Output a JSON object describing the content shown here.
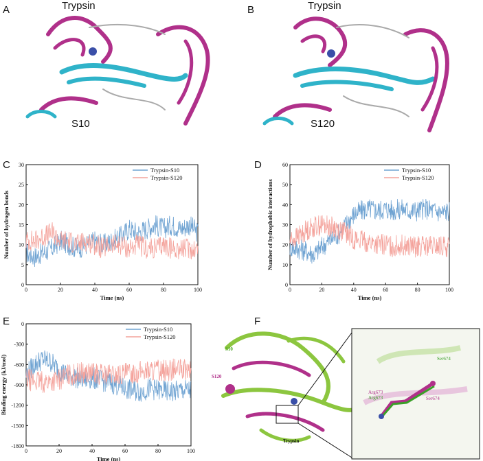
{
  "panels": {
    "A": {
      "letter": "A",
      "top_label": "Trypsin",
      "bottom_label": "S10"
    },
    "B": {
      "letter": "B",
      "top_label": "Trypsin",
      "bottom_label": "S120"
    },
    "C": {
      "letter": "C"
    },
    "D": {
      "letter": "D"
    },
    "E": {
      "letter": "E"
    },
    "F": {
      "letter": "F",
      "labels": {
        "s10": "S10",
        "s120": "S120",
        "trypsin": "Trypsin",
        "arg673_a": "Arg673",
        "arg673_b": "Arg673",
        "ser674_a": "Ser674",
        "ser674_b": "Ser674"
      }
    }
  },
  "colors": {
    "series1": "#6fa3d2",
    "series2": "#f4a39c",
    "green": "#4fa82a",
    "magenta": "#b0308a"
  },
  "chart_data": [
    {
      "id": "C",
      "type": "line",
      "xlabel": "Time (ns)",
      "ylabel": "Number of hydrogen bonds",
      "xlim": [
        0,
        100
      ],
      "ylim": [
        0,
        30
      ],
      "xticks": [
        0,
        20,
        40,
        60,
        80,
        100
      ],
      "yticks": [
        0,
        5,
        10,
        15,
        20,
        25,
        30
      ],
      "legend": "top-right",
      "series": [
        {
          "name": "Trypsin-S10",
          "color": "#6fa3d2",
          "x": [
            0,
            5,
            10,
            15,
            20,
            25,
            30,
            35,
            40,
            45,
            50,
            55,
            60,
            65,
            70,
            75,
            80,
            85,
            90,
            95,
            100
          ],
          "y": [
            8,
            7,
            8,
            9,
            11,
            10,
            9,
            10,
            11,
            10,
            11,
            12,
            14,
            13,
            14,
            15,
            14,
            15,
            14,
            15,
            13
          ]
        },
        {
          "name": "Trypsin-S120",
          "color": "#f4a39c",
          "x": [
            0,
            5,
            10,
            15,
            20,
            25,
            30,
            35,
            40,
            45,
            50,
            55,
            60,
            65,
            70,
            75,
            80,
            85,
            90,
            95,
            100
          ],
          "y": [
            11,
            11,
            12,
            13,
            11,
            11,
            10,
            11,
            10,
            9,
            10,
            10,
            9,
            10,
            9,
            9,
            10,
            9,
            9,
            9,
            9
          ]
        }
      ]
    },
    {
      "id": "D",
      "type": "line",
      "xlabel": "Time (ns)",
      "ylabel": "Number of hydrophobic interactions",
      "xlim": [
        0,
        100
      ],
      "ylim": [
        0,
        60
      ],
      "xticks": [
        0,
        20,
        40,
        60,
        80,
        100
      ],
      "yticks": [
        0,
        10,
        20,
        30,
        40,
        50,
        60
      ],
      "legend": "top-right",
      "series": [
        {
          "name": "Trypsin-S10",
          "color": "#6fa3d2",
          "x": [
            0,
            5,
            10,
            15,
            20,
            25,
            30,
            35,
            40,
            45,
            50,
            55,
            60,
            65,
            70,
            75,
            80,
            85,
            90,
            95,
            100
          ],
          "y": [
            19,
            18,
            17,
            15,
            19,
            22,
            25,
            30,
            35,
            37,
            38,
            37,
            38,
            37,
            38,
            37,
            37,
            38,
            37,
            36,
            37
          ]
        },
        {
          "name": "Trypsin-S120",
          "color": "#f4a39c",
          "x": [
            0,
            5,
            10,
            15,
            20,
            25,
            30,
            35,
            40,
            45,
            50,
            55,
            60,
            65,
            70,
            75,
            80,
            85,
            90,
            95,
            100
          ],
          "y": [
            22,
            24,
            27,
            29,
            30,
            29,
            28,
            26,
            23,
            22,
            21,
            20,
            20,
            19,
            20,
            19,
            19,
            19,
            19,
            19,
            19
          ]
        }
      ]
    },
    {
      "id": "E",
      "type": "line",
      "xlabel": "Time (ns)",
      "ylabel": "Binding energy (kJ/mol)",
      "xlim": [
        0,
        100
      ],
      "ylim": [
        -1800,
        0
      ],
      "xticks": [
        0,
        20,
        40,
        60,
        80,
        100
      ],
      "yticks": [
        0,
        -300,
        -600,
        -900,
        -1200,
        -1500,
        -1800
      ],
      "legend": "top-right",
      "series": [
        {
          "name": "Trypsin-S10",
          "color": "#6fa3d2",
          "x": [
            0,
            5,
            10,
            15,
            20,
            25,
            30,
            35,
            40,
            45,
            50,
            55,
            60,
            65,
            70,
            75,
            80,
            85,
            90,
            95,
            100
          ],
          "y": [
            -750,
            -600,
            -520,
            -560,
            -680,
            -760,
            -790,
            -820,
            -800,
            -830,
            -860,
            -900,
            -960,
            -980,
            -1000,
            -950,
            -980,
            -1000,
            -1000,
            -980,
            -980
          ]
        },
        {
          "name": "Trypsin-S120",
          "color": "#f4a39c",
          "x": [
            0,
            5,
            10,
            15,
            20,
            25,
            30,
            35,
            40,
            45,
            50,
            55,
            60,
            65,
            70,
            75,
            80,
            85,
            90,
            95,
            100
          ],
          "y": [
            -820,
            -840,
            -860,
            -850,
            -820,
            -760,
            -740,
            -720,
            -730,
            -740,
            -750,
            -760,
            -740,
            -720,
            -700,
            -690,
            -680,
            -690,
            -670,
            -680,
            -700
          ]
        }
      ]
    }
  ]
}
